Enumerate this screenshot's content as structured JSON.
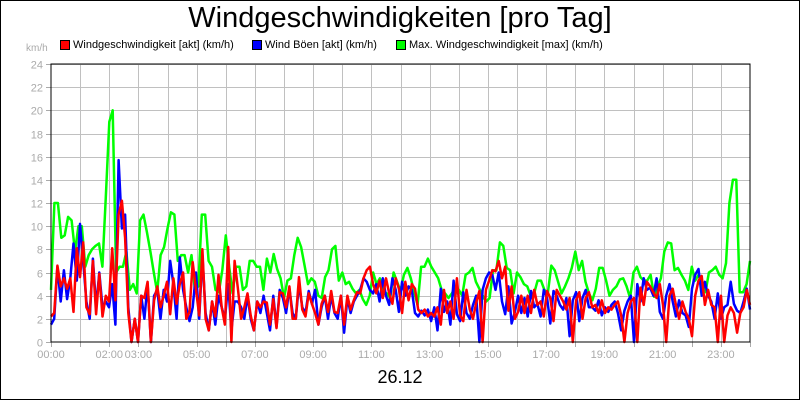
{
  "chart": {
    "title": "Windgeschwindigkeiten [pro Tag]",
    "unit_label": "km/h",
    "date_label": "26.12"
  },
  "legend": [
    {
      "label": "Windgeschwindigkeit [akt] (km/h)",
      "color": "#ff0000"
    },
    {
      "label": "Wind Böen [akt] (km/h)",
      "color": "#0000ff"
    },
    {
      "label": "Max. Windgeschwindigkeit [max] (km/h)",
      "color": "#00ff00"
    }
  ],
  "chart_data": {
    "type": "line",
    "title": "Windgeschwindigkeiten [pro Tag]",
    "xlabel": "26.12",
    "ylabel": "km/h",
    "ylim": [
      0,
      24
    ],
    "yticks": [
      0,
      2,
      4,
      6,
      8,
      10,
      12,
      14,
      16,
      18,
      20,
      22,
      24
    ],
    "xlim_hours": [
      0,
      24
    ],
    "xtick_labels": [
      {
        "hour": 0,
        "label": "00:00"
      },
      {
        "hour": 2,
        "label": "02:00"
      },
      {
        "hour": 3,
        "label": "03:00"
      },
      {
        "hour": 5,
        "label": "05:00"
      },
      {
        "hour": 7,
        "label": "07:00"
      },
      {
        "hour": 9,
        "label": "09:00"
      },
      {
        "hour": 11,
        "label": "11:00"
      },
      {
        "hour": 13,
        "label": "13:00"
      },
      {
        "hour": 15,
        "label": "15:00"
      },
      {
        "hour": 17,
        "label": "17:00"
      },
      {
        "hour": 19,
        "label": "19:00"
      },
      {
        "hour": 21,
        "label": "21:00"
      },
      {
        "hour": 23,
        "label": "23:00"
      }
    ],
    "grid": true,
    "legend_position": "top",
    "x_hours": [
      0,
      0.25,
      0.5,
      0.75,
      1,
      1.25,
      1.5,
      1.75,
      2,
      2.25,
      2.5,
      2.75,
      3,
      3.25,
      3.5,
      3.75,
      4,
      4.25,
      4.5,
      4.75,
      5,
      5.25,
      5.5,
      5.75,
      6,
      6.25,
      6.5,
      6.75,
      7,
      7.25,
      7.5,
      7.75,
      8,
      8.25,
      8.5,
      8.75,
      9,
      9.25,
      9.5,
      9.75,
      10,
      10.25,
      10.5,
      10.75,
      11,
      11.25,
      11.5,
      11.75,
      12,
      12.25,
      12.5,
      12.75,
      13,
      13.25,
      13.5,
      13.75,
      14,
      14.25,
      14.5,
      14.75,
      15,
      15.25,
      15.5,
      15.75,
      16,
      16.25,
      16.5,
      16.75,
      17,
      17.25,
      17.5,
      17.75,
      18,
      18.25,
      18.5,
      18.75,
      19,
      19.25,
      19.5,
      19.75,
      20,
      20.25,
      20.5,
      20.75,
      21,
      21.25,
      21.5,
      21.75,
      22,
      22.25,
      22.5,
      22.75,
      23,
      23.25,
      23.5,
      23.75,
      24
    ],
    "series": [
      {
        "name": "Max. Windgeschwindigkeit [max] (km/h)",
        "color": "#00ff00",
        "values": [
          4.5,
          12,
          12,
          9,
          9.2,
          10.8,
          10.5,
          7.8,
          10,
          10,
          6.5,
          7.5,
          8,
          8.3,
          8.5,
          6.5,
          12.5,
          19,
          20,
          6,
          6.5,
          6.5,
          7.8,
          4.5,
          5,
          4.2,
          10.5,
          11,
          9.5,
          7.8,
          6,
          4.3,
          7.5,
          8.2,
          9.8,
          11.2,
          11,
          7,
          7.5,
          7.5,
          6,
          7.5,
          4.5,
          4.8,
          11,
          11,
          7,
          6.5,
          4.5,
          4.3,
          6.2,
          9.2,
          6.5,
          4.2,
          6.5,
          6.5,
          4.5,
          4.8,
          7,
          7,
          6.5,
          6.5,
          4.5,
          7.2,
          6,
          7.6,
          6.3,
          5.5,
          3.8,
          5.3,
          5.5,
          7.5,
          9,
          8.2,
          6.6,
          5,
          5.5,
          5.2,
          4,
          3.8,
          5.6,
          6.2,
          8,
          8.3,
          5.3,
          6,
          5,
          5.2,
          4.6,
          4.2,
          4.5,
          3.7,
          3.2,
          4,
          6,
          5,
          5.5,
          4.3,
          4.2,
          3.8,
          6,
          5.2,
          4.4,
          5.8,
          6.4,
          5.5,
          4.3,
          3.2,
          6.5,
          6.5,
          7.2,
          6.5,
          6,
          5.5,
          4.5,
          4.2,
          3.8,
          4.2,
          4.8,
          4.5,
          4,
          5.8,
          6,
          6.4,
          5.2,
          4.6,
          4,
          3.5,
          3.8,
          6.2,
          6.2,
          8.6,
          8.3,
          6.4,
          6.2,
          4.2,
          6,
          5.6,
          5,
          4.8,
          4,
          4.2,
          5.3,
          5.3,
          4.5,
          4.2,
          6.6,
          6.2,
          5.2,
          4.2,
          4.8,
          5.5,
          6.4,
          7.8,
          6.2,
          7,
          5.2,
          4.2,
          3.6,
          4.6,
          6.4,
          6.4,
          5.3,
          4,
          4.5,
          4.8,
          5.4,
          5.5,
          4.8,
          3.8,
          6,
          6.5,
          5.6,
          5.3,
          5.3,
          5.8,
          3.9,
          4.8,
          5.5,
          7.8,
          8.6,
          8.5,
          6.2,
          6.4,
          5.8,
          5.3,
          4.5,
          6.5,
          5.3,
          5.8,
          5,
          4.3,
          6,
          6.2,
          6.5,
          5.8,
          5.5,
          6.8,
          12,
          14,
          14,
          4.3,
          4.3,
          5,
          7
        ],
        "note": "values sampled at finer resolution; rendered as evenly spaced points across 0–24h"
      },
      {
        "name": "Wind Böen [akt] (km/h)",
        "color": "#0000ff",
        "values": [
          1.5,
          2,
          6.5,
          3.5,
          6.2,
          3.7,
          5.5,
          8.5,
          5.3,
          10.2,
          7,
          3.5,
          2,
          7.2,
          3,
          6,
          3,
          3.5,
          3,
          5,
          1.5,
          15.7,
          9.8,
          11,
          3,
          0,
          2,
          0,
          4,
          2,
          5,
          0,
          4,
          4.5,
          2,
          4.5,
          3.5,
          7,
          5,
          2,
          7.3,
          4.5,
          3,
          1.8,
          3,
          6,
          2,
          7.5,
          2.5,
          1,
          3.5,
          1.5,
          4,
          3,
          2,
          5,
          1,
          3.5,
          3.5,
          3,
          2,
          4,
          2,
          1,
          3.5,
          2.5,
          4,
          2.5,
          1,
          4,
          1.3,
          4.5,
          3.8,
          2.5,
          4.6,
          2.5,
          2,
          5,
          3,
          2.5,
          4.4,
          3.3,
          4.5,
          1.5,
          3,
          4,
          2,
          4,
          2.5,
          2,
          4,
          0.8,
          3.8,
          2.5,
          3.5,
          4,
          4.5,
          5.5,
          5.2,
          4.5,
          4.2,
          5,
          3.5,
          5.5,
          4,
          3.2,
          5.5,
          4.5,
          2.6,
          5.2,
          4,
          4.8,
          4.5,
          2.5,
          2.2,
          2.7,
          2.3,
          2.8,
          1.8,
          3,
          1,
          4.6,
          2.6,
          3.5,
          1.5,
          5.3,
          2.4,
          1.8,
          4.3,
          2.5,
          2,
          3.2,
          4,
          0,
          4.5,
          5.5,
          6,
          5.8,
          4.5,
          6,
          3.5,
          2.4,
          4.8,
          1.6,
          2.6,
          4,
          2.5,
          3.8,
          2.2,
          4.4,
          3,
          3.3,
          2.2,
          4.5,
          3.8,
          1.6,
          4.4,
          4,
          3.2,
          2.8,
          3.8,
          0.5,
          3.6,
          4.3,
          1.8,
          3.8,
          4.5,
          3,
          3,
          2.7,
          3.6,
          2.3,
          3,
          2.6,
          3.2,
          3.5,
          2.5,
          1,
          2.7,
          3.5,
          4,
          0,
          5,
          3.5,
          5.5,
          4.5,
          4.7,
          4,
          5.5,
          2.6,
          2,
          4,
          5,
          3.5,
          2.2,
          3.6,
          2.5,
          2.3,
          1.3,
          4.6,
          5.8,
          6.3,
          4,
          5.2,
          4,
          3.5,
          2,
          4.2,
          2,
          3,
          3.2,
          5.2,
          3.3,
          2.7,
          2.5,
          3.5,
          4.6,
          2.8
        ],
        "note": "values sampled at finer resolution; rendered as evenly spaced points across 0–24h"
      },
      {
        "name": "Windgeschwindigkeit [akt] (km/h)",
        "color": "#ff0000",
        "values": [
          2.2,
          2.5,
          6.6,
          4.8,
          5.5,
          4.6,
          5.5,
          2.6,
          8.1,
          5.6,
          8.6,
          3,
          2.4,
          7,
          2.4,
          5.9,
          2.2,
          4,
          3.5,
          8.1,
          3.6,
          11,
          12.2,
          9,
          2.5,
          0,
          2,
          0,
          4,
          3.8,
          5.2,
          0,
          3.6,
          4.8,
          3,
          4,
          5.2,
          2.4,
          5.5,
          3.3,
          5,
          6,
          2,
          2.6,
          6.9,
          4.5,
          2.3,
          8,
          2,
          1,
          3.5,
          2.2,
          5.8,
          3,
          1.5,
          8.2,
          0,
          7,
          4.7,
          2,
          3,
          4.2,
          2.3,
          1,
          3.5,
          3,
          3.5,
          3.4,
          1.5,
          3.7,
          1.2,
          4.3,
          4.2,
          3,
          4.8,
          2,
          2,
          5.6,
          2.8,
          2.2,
          4.2,
          3.3,
          2.5,
          1.5,
          3.3,
          4,
          2.6,
          4.4,
          2.6,
          2.5,
          4,
          1.5,
          4,
          2.8,
          3.6,
          4.3,
          4.2,
          5.5,
          6.2,
          6.5,
          5,
          4.2,
          5.3,
          3.8,
          5.5,
          4.2,
          3.3,
          5.5,
          4.6,
          2.5,
          5.2,
          3.6,
          5,
          4.6,
          2.8,
          2.5,
          2.8,
          2.2,
          2.5,
          2.2,
          3,
          1.5,
          4.5,
          2.5,
          3.5,
          2,
          5.5,
          2.3,
          1.8,
          4.5,
          2.8,
          2,
          3.4,
          4.4,
          0,
          4.5,
          5.3,
          6.2,
          6.1,
          7,
          5.5,
          6.5,
          2.7,
          4.8,
          2,
          2.6,
          4,
          2.5,
          4,
          2.5,
          4.5,
          3.2,
          3.5,
          2.2,
          4.4,
          3.8,
          1.8,
          4.5,
          4,
          3.5,
          2.8,
          3.8,
          0,
          3.6,
          4.3,
          2,
          3.8,
          4.3,
          3,
          3.2,
          2.5,
          3.6,
          2.5,
          3,
          2.8,
          3.2,
          3.5,
          2.3,
          0,
          2.5,
          3.5,
          3.8,
          0,
          4.7,
          3.2,
          5.2,
          4.8,
          4.3,
          3.8,
          5,
          3.2,
          0,
          4,
          4.6,
          3.2,
          2,
          3.5,
          2.6,
          2,
          0.5,
          4,
          5.3,
          5.7,
          3.2,
          4.5,
          3.2,
          3,
          0,
          4,
          0,
          2.3,
          3,
          2.5,
          0.8,
          2.5,
          3,
          4.5,
          3.2
        ]
      }
    ]
  }
}
